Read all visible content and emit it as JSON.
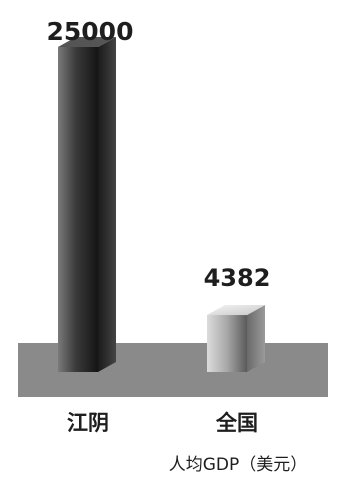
{
  "chart_data": {
    "type": "bar",
    "categories": [
      "江阴",
      "全国"
    ],
    "values": [
      25000,
      4382
    ],
    "value_labels": [
      "25000",
      "4382"
    ],
    "unit_label": "人均GDP（美元）",
    "colors": {
      "bar_1_front": "#2b2b2b",
      "bar_2_front": "#8f8f8f",
      "floor": "#8a8a8a",
      "text": "#1e1e1e"
    }
  }
}
